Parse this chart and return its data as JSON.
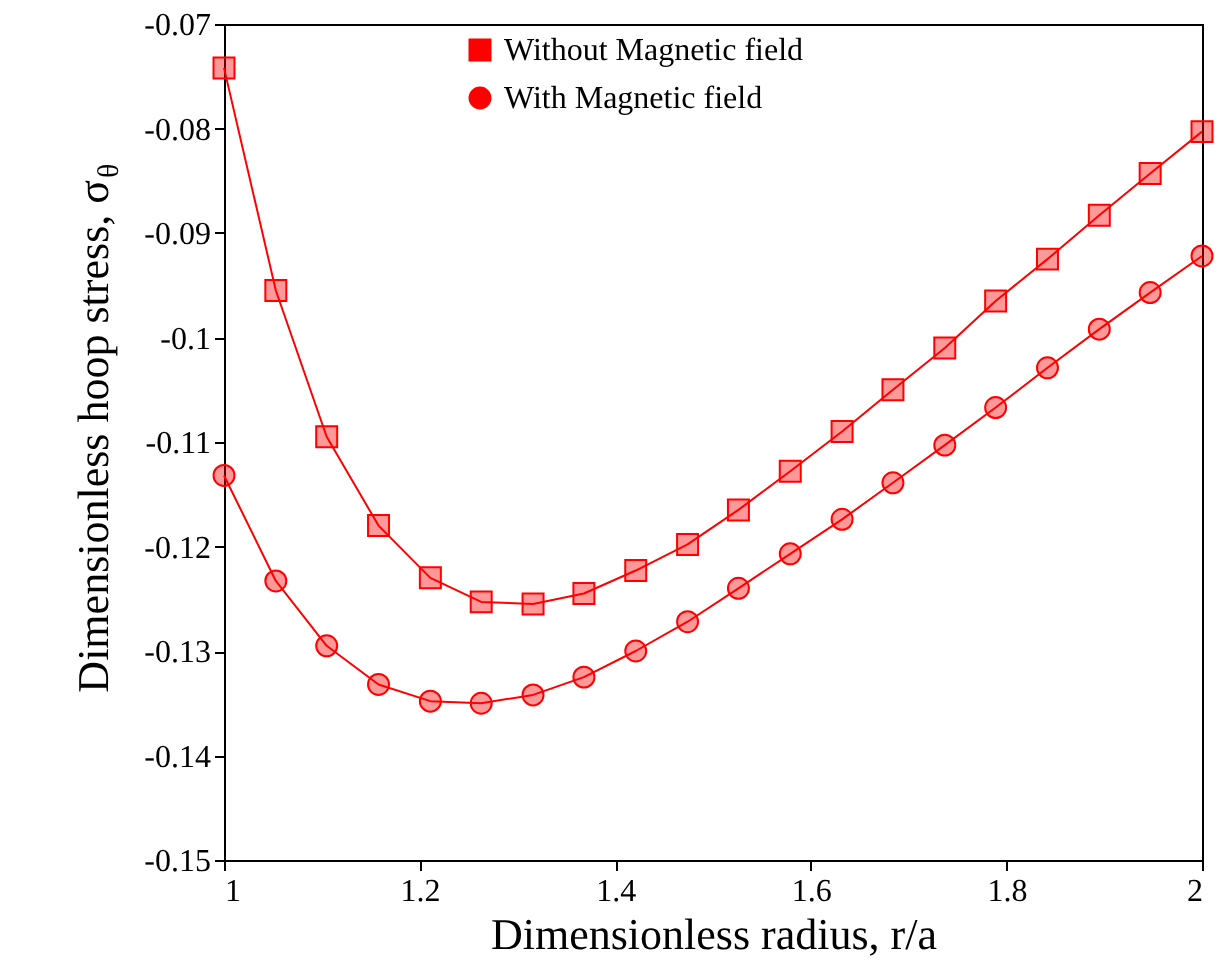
{
  "chart_data": {
    "type": "line",
    "xlabel": "Dimensionless radius, r/a",
    "ylabel": "Dimensionless hoop stress, σ$_{θ}$",
    "x": [
      1,
      1.053,
      1.105,
      1.158,
      1.211,
      1.263,
      1.316,
      1.368,
      1.421,
      1.474,
      1.526,
      1.579,
      1.632,
      1.684,
      1.737,
      1.789,
      1.842,
      1.895,
      1.947,
      2
    ],
    "series": [
      {
        "name": "Without Magnetic field",
        "color": "#ff0000",
        "marker": "square",
        "values": [
          -0.0742,
          -0.0955,
          -0.1095,
          -0.118,
          -0.123,
          -0.1253,
          -0.1255,
          -0.1245,
          -0.1223,
          -0.1198,
          -0.1165,
          -0.1128,
          -0.109,
          -0.105,
          -0.101,
          -0.0965,
          -0.0925,
          -0.0883,
          -0.0843,
          -0.0803
        ]
      },
      {
        "name": "With Magnetic field",
        "color": "#ff0000",
        "marker": "circle",
        "values": [
          -0.1132,
          -0.1233,
          -0.1295,
          -0.1332,
          -0.1348,
          -0.135,
          -0.1342,
          -0.1325,
          -0.13,
          -0.1272,
          -0.124,
          -0.1207,
          -0.1174,
          -0.1139,
          -0.1103,
          -0.1067,
          -0.1029,
          -0.0992,
          -0.0957,
          -0.0922
        ]
      }
    ],
    "xlim": [
      1,
      2
    ],
    "xticks": [
      1,
      1.2,
      1.4,
      1.6,
      1.8,
      2
    ],
    "ylim": [
      -0.15,
      -0.07
    ],
    "yticks": [
      -0.15,
      -0.14,
      -0.13,
      -0.12,
      -0.11,
      -0.1,
      -0.09,
      -0.08,
      -0.07
    ],
    "grid": false,
    "legend": "top",
    "line_style": "solid"
  }
}
